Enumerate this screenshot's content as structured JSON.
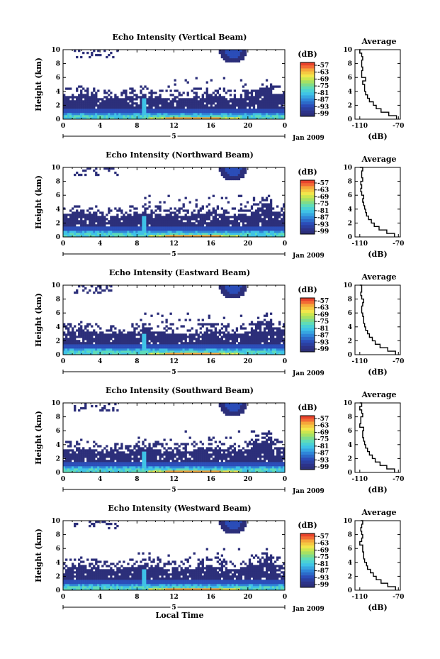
{
  "chart_data": [
    {
      "type": "heatmap",
      "title": "Echo Intensity (Vertical Beam)",
      "ylabel": "Height (km)",
      "xticks": [
        "0",
        "4",
        "8",
        "12",
        "16",
        "20",
        "0"
      ],
      "yticks": [
        "0",
        "2",
        "4",
        "6",
        "8",
        "10"
      ],
      "xlim": [
        0,
        24
      ],
      "ylim": [
        0,
        10
      ],
      "date_label": "Jan 2009",
      "day_label": "5",
      "colorbar": {
        "label": "(dB)",
        "ticks": [
          "-57",
          "-63",
          "-69",
          "-75",
          "-81",
          "-87",
          "-93",
          "-99"
        ]
      },
      "average": {
        "title": "Average",
        "xlabel": "(dB)",
        "xticks": [
          "-110",
          "-70"
        ],
        "yticks": [
          "0",
          "2",
          "4",
          "6",
          "8",
          "10"
        ],
        "profile": {
          "height_km": [
            0,
            0.5,
            1,
            1.5,
            2,
            2.5,
            3,
            3.5,
            4,
            4.5,
            5,
            5.5,
            6,
            6.5,
            7,
            7.5,
            8,
            8.5,
            9,
            9.5,
            10
          ],
          "db": [
            -72,
            -80,
            -88,
            -93,
            -96,
            -100,
            -102,
            -104,
            -105,
            -105,
            -107,
            -104,
            -108,
            -108,
            -107,
            -108,
            -108,
            -107,
            -108,
            -110,
            -109
          ]
        }
      }
    },
    {
      "type": "heatmap",
      "title": "Echo Intensity (Northward Beam)",
      "ylabel": "Height (km)",
      "xticks": [
        "0",
        "4",
        "8",
        "12",
        "16",
        "20",
        "0"
      ],
      "yticks": [
        "0",
        "2",
        "4",
        "6",
        "8",
        "10"
      ],
      "xlim": [
        0,
        24
      ],
      "ylim": [
        0,
        10
      ],
      "date_label": "Jan 2009",
      "day_label": "5",
      "colorbar": {
        "label": "(dB)",
        "ticks": [
          "-57",
          "-63",
          "-69",
          "-75",
          "-81",
          "-87",
          "-93",
          "-99"
        ]
      },
      "average": {
        "title": "Average",
        "xlabel": "(dB)",
        "xticks": [
          "-110",
          "-70"
        ],
        "yticks": [
          "0",
          "2",
          "4",
          "6",
          "8",
          "10"
        ],
        "profile": {
          "height_km": [
            0,
            0.5,
            1,
            1.5,
            2,
            2.5,
            3,
            3.5,
            4,
            4.5,
            5,
            5.5,
            6,
            6.5,
            7,
            7.5,
            8,
            8.5,
            9,
            9.5,
            10
          ],
          "db": [
            -74,
            -82,
            -90,
            -95,
            -98,
            -101,
            -103,
            -104,
            -105,
            -106,
            -107,
            -106,
            -108,
            -109,
            -108,
            -109,
            -107,
            -108,
            -108,
            -107,
            -110
          ]
        }
      }
    },
    {
      "type": "heatmap",
      "title": "Echo Intensity (Eastward Beam)",
      "ylabel": "Height (km)",
      "xticks": [
        "0",
        "4",
        "8",
        "12",
        "16",
        "20",
        "0"
      ],
      "yticks": [
        "0",
        "2",
        "4",
        "6",
        "8",
        "10"
      ],
      "xlim": [
        0,
        24
      ],
      "ylim": [
        0,
        10
      ],
      "date_label": "Jan 2009",
      "day_label": "5",
      "colorbar": {
        "label": "(dB)",
        "ticks": [
          "-57",
          "-63",
          "-69",
          "-75",
          "-81",
          "-87",
          "-93",
          "-99"
        ]
      },
      "average": {
        "title": "Average",
        "xlabel": "(dB)",
        "xticks": [
          "-110",
          "-70"
        ],
        "yticks": [
          "0",
          "2",
          "4",
          "6",
          "8",
          "10"
        ],
        "profile": {
          "height_km": [
            0,
            0.5,
            1,
            1.5,
            2,
            2.5,
            3,
            3.5,
            4,
            4.5,
            5,
            5.5,
            6,
            6.5,
            7,
            7.5,
            8,
            8.5,
            9,
            9.5,
            10
          ],
          "db": [
            -73,
            -81,
            -89,
            -94,
            -97,
            -100,
            -102,
            -104,
            -105,
            -106,
            -106,
            -107,
            -108,
            -108,
            -107,
            -106,
            -108,
            -109,
            -108,
            -108,
            -110
          ]
        }
      }
    },
    {
      "type": "heatmap",
      "title": "Echo Intensity (Southward Beam)",
      "ylabel": "Height (km)",
      "xticks": [
        "0",
        "4",
        "8",
        "12",
        "16",
        "20",
        "0"
      ],
      "yticks": [
        "0",
        "2",
        "4",
        "6",
        "8",
        "10"
      ],
      "xlim": [
        0,
        24
      ],
      "ylim": [
        0,
        10
      ],
      "date_label": "Jan 2009",
      "day_label": "5",
      "colorbar": {
        "label": "(dB)",
        "ticks": [
          "-57",
          "-63",
          "-69",
          "-75",
          "-81",
          "-87",
          "-93",
          "-99"
        ]
      },
      "average": {
        "title": "Average",
        "xlabel": "(dB)",
        "xticks": [
          "-110",
          "-70"
        ],
        "yticks": [
          "0",
          "2",
          "4",
          "6",
          "8",
          "10"
        ],
        "profile": {
          "height_km": [
            0,
            0.5,
            1,
            1.5,
            2,
            2.5,
            3,
            3.5,
            4,
            4.5,
            5,
            5.5,
            6,
            6.5,
            7,
            7.5,
            8,
            8.5,
            9,
            9.5,
            10
          ],
          "db": [
            -74,
            -82,
            -89,
            -94,
            -97,
            -100,
            -102,
            -104,
            -105,
            -106,
            -107,
            -107,
            -106,
            -110,
            -109,
            -109,
            -107,
            -108,
            -110,
            -108,
            -110
          ]
        }
      }
    },
    {
      "type": "heatmap",
      "title": "Echo Intensity (Westward Beam)",
      "ylabel": "Height (km)",
      "xlabel": "Local Time",
      "xticks": [
        "0",
        "4",
        "8",
        "12",
        "16",
        "20",
        "0"
      ],
      "yticks": [
        "0",
        "2",
        "4",
        "6",
        "8",
        "10"
      ],
      "xlim": [
        0,
        24
      ],
      "ylim": [
        0,
        10
      ],
      "date_label": "Jan 2009",
      "day_label": "5",
      "colorbar": {
        "label": "(dB)",
        "ticks": [
          "-57",
          "-63",
          "-69",
          "-75",
          "-81",
          "-87",
          "-93",
          "-99"
        ]
      },
      "average": {
        "title": "Average",
        "xlabel": "(dB)",
        "xticks": [
          "-110",
          "-70"
        ],
        "yticks": [
          "0",
          "2",
          "4",
          "6",
          "8",
          "10"
        ],
        "profile": {
          "height_km": [
            0,
            0.5,
            1,
            1.5,
            2,
            2.5,
            3,
            3.5,
            4,
            4.5,
            5,
            5.5,
            6,
            6.5,
            7,
            7.5,
            8,
            8.5,
            9,
            9.5,
            10
          ],
          "db": [
            -73,
            -81,
            -88,
            -93,
            -96,
            -99,
            -102,
            -103,
            -105,
            -106,
            -106,
            -107,
            -107,
            -110,
            -108,
            -107,
            -108,
            -109,
            -108,
            -107,
            -109
          ]
        }
      }
    }
  ],
  "colormap": [
    "#2c2f7a",
    "#2b4db8",
    "#2f86d8",
    "#3fc2e6",
    "#5fdcb8",
    "#a6e163",
    "#f2e64b",
    "#f5a63a",
    "#e8432c"
  ]
}
